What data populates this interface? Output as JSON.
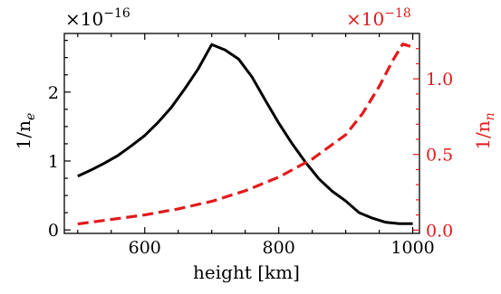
{
  "chart_data": {
    "type": "line",
    "xlabel": "height [km]",
    "xlim": [
      480,
      1010
    ],
    "x_ticks": [
      600,
      800,
      1000
    ],
    "x_tick_labels": [
      "600",
      "800",
      "1000"
    ],
    "left_axis": {
      "label": "1/n",
      "label_sub": "e",
      "multiplier_base": "×10",
      "multiplier_exp": "−16",
      "ylim": [
        -0.05,
        2.85
      ],
      "ticks": [
        0,
        1,
        2
      ],
      "tick_labels": [
        "0",
        "1",
        "2"
      ],
      "color": "#000000"
    },
    "right_axis": {
      "label": "1/n",
      "label_sub": "n",
      "multiplier_base": "×10",
      "multiplier_exp": "−18",
      "ylim": [
        -0.022,
        1.3
      ],
      "ticks": [
        0.0,
        0.5,
        1.0
      ],
      "tick_labels": [
        "0.0",
        "0.5",
        "1.0"
      ],
      "color": "#e31a1c"
    },
    "series": [
      {
        "axis": "left",
        "style": "solid",
        "color": "#000000",
        "x": [
          500,
          520,
          540,
          560,
          580,
          600,
          620,
          640,
          660,
          680,
          700,
          720,
          740,
          760,
          780,
          800,
          820,
          840,
          860,
          880,
          900,
          920,
          940,
          960,
          980,
          1000
        ],
        "y": [
          0.78,
          0.87,
          0.97,
          1.08,
          1.22,
          1.37,
          1.56,
          1.78,
          2.05,
          2.34,
          2.69,
          2.61,
          2.48,
          2.22,
          1.88,
          1.55,
          1.25,
          0.98,
          0.74,
          0.56,
          0.42,
          0.25,
          0.17,
          0.11,
          0.09,
          0.09
        ]
      },
      {
        "axis": "right",
        "style": "dashed",
        "color": "#e31a1c",
        "x": [
          500,
          550,
          600,
          650,
          700,
          750,
          800,
          850,
          900,
          925,
          950,
          970,
          985,
          1000
        ],
        "y": [
          0.04,
          0.07,
          0.1,
          0.14,
          0.19,
          0.26,
          0.35,
          0.47,
          0.63,
          0.77,
          0.95,
          1.12,
          1.23,
          1.21
        ]
      }
    ]
  }
}
